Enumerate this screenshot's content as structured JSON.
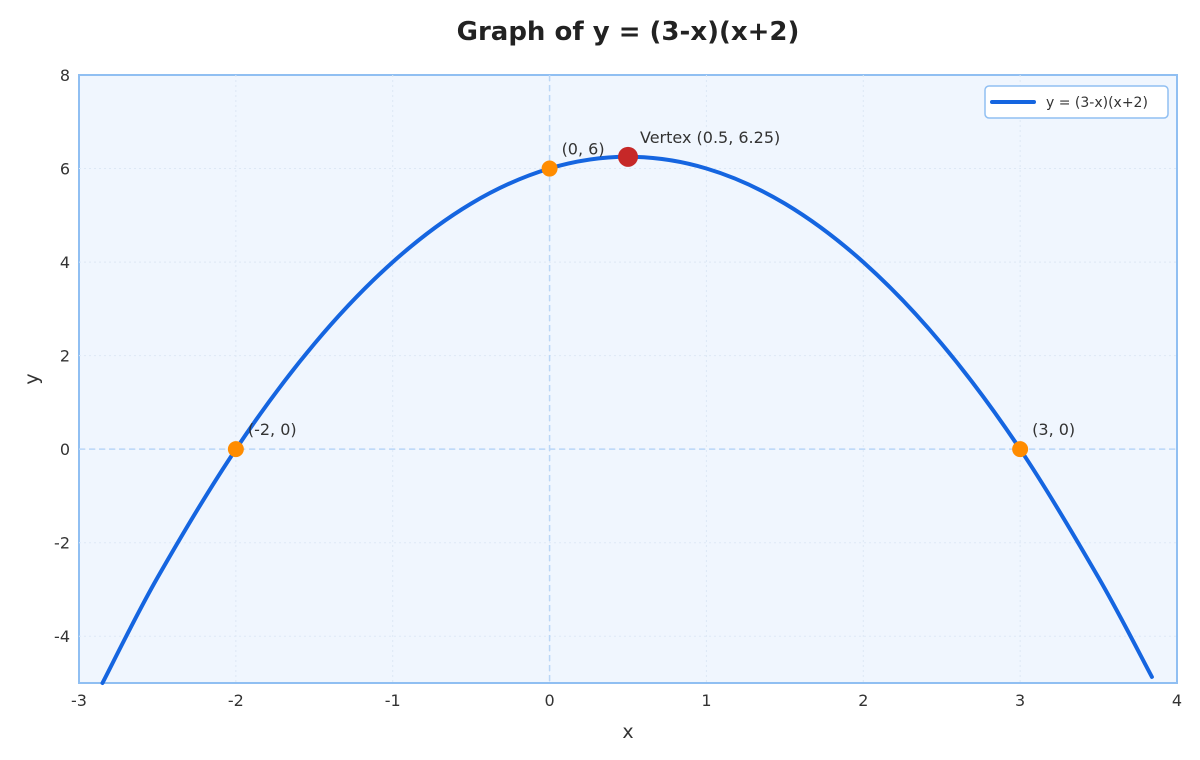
{
  "chart_data": {
    "type": "line",
    "title": "Graph of y = (3-x)(x+2)",
    "xlabel": "x",
    "ylabel": "y",
    "xlim": [
      -3,
      4
    ],
    "ylim": [
      -5,
      8
    ],
    "xticks": [
      -3,
      -2,
      -1,
      0,
      1,
      2,
      3,
      4
    ],
    "yticks": [
      -4,
      -2,
      0,
      2,
      4,
      6,
      8
    ],
    "grid": true,
    "legend_position": "top-right",
    "series": [
      {
        "name": "y = (3-x)(x+2)",
        "color": "#1565e0",
        "x": [
          -2.85,
          -2.5,
          -2,
          -1.5,
          -1,
          -0.5,
          0,
          0.5,
          1,
          1.5,
          2,
          2.5,
          3,
          3.5,
          3.84
        ],
        "y": [
          -5.0,
          -2.75,
          0,
          2.25,
          4,
          5.25,
          6,
          6.25,
          6,
          5.25,
          4,
          2.25,
          0,
          -2.75,
          -4.87
        ]
      }
    ],
    "points": [
      {
        "x": -2,
        "y": 0,
        "label": "(-2, 0)",
        "color": "#ff8c00"
      },
      {
        "x": 0,
        "y": 6,
        "label": "(0, 6)",
        "color": "#ff8c00"
      },
      {
        "x": 3,
        "y": 0,
        "label": "(3, 0)",
        "color": "#ff8c00"
      },
      {
        "x": 0.5,
        "y": 6.25,
        "label": "Vertex (0.5, 6.25)",
        "color": "#c62828"
      }
    ]
  }
}
